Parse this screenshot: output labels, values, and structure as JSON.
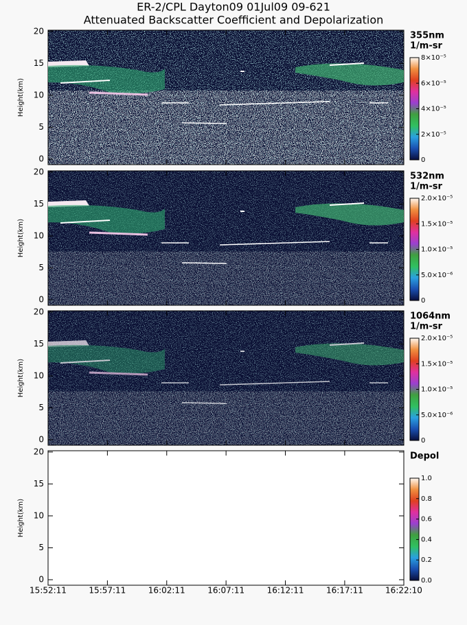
{
  "title": [
    "ER-2/CPL Dayton09 01Jul09 09-621",
    "Attenuated Backscatter Coefficient and Depolarization"
  ],
  "colormap": [
    "#0a0f3c",
    "#1a4fb0",
    "#2aa0e0",
    "#30c060",
    "#40a040",
    "#9a40d0",
    "#e030a0",
    "#e04020",
    "#f09040",
    "#fff8f0"
  ],
  "chart_data": [
    {
      "type": "heatmap",
      "ylabel": "Height(km)",
      "ylim": [
        -0.86,
        20.2
      ],
      "yticks": [
        0,
        5,
        10,
        15,
        20
      ],
      "background": "#0b1034",
      "colorbar_label": [
        "355nm",
        "1/m-sr"
      ],
      "clim": [
        0,
        8e-05
      ],
      "cticks": [
        {
          "value": 0,
          "label": "0"
        },
        {
          "value": 2e-05,
          "label": "2×10⁻⁵"
        },
        {
          "value": 4e-05,
          "label": "4×10⁻⁵"
        },
        {
          "value": 6e-05,
          "label": "6×10⁻⁵"
        },
        {
          "value": 8e-05,
          "label": "8×10⁻⁵"
        }
      ]
    },
    {
      "type": "heatmap",
      "ylabel": "Height(km)",
      "ylim": [
        -0.86,
        20.2
      ],
      "yticks": [
        0,
        5,
        10,
        15,
        20
      ],
      "background": "#0b1034",
      "colorbar_label": [
        "532nm",
        "1/m-sr"
      ],
      "clim": [
        0,
        2e-05
      ],
      "cticks": [
        {
          "value": 0,
          "label": "0"
        },
        {
          "value": 5e-06,
          "label": "5.0×10⁻⁶"
        },
        {
          "value": 1e-05,
          "label": "1.0×10⁻⁵"
        },
        {
          "value": 1.5e-05,
          "label": "1.5×10⁻⁵"
        },
        {
          "value": 2e-05,
          "label": "2.0×10⁻⁵"
        }
      ]
    },
    {
      "type": "heatmap",
      "ylabel": "Height(km)",
      "ylim": [
        -0.86,
        20.2
      ],
      "yticks": [
        0,
        5,
        10,
        15,
        20
      ],
      "background": "#0b1034",
      "colorbar_label": [
        "1064nm",
        "1/m-sr"
      ],
      "clim": [
        0,
        2e-05
      ],
      "cticks": [
        {
          "value": 0,
          "label": "0"
        },
        {
          "value": 5e-06,
          "label": "5.0×10⁻⁶"
        },
        {
          "value": 1e-05,
          "label": "1.0×10⁻⁵"
        },
        {
          "value": 1.5e-05,
          "label": "1.5×10⁻⁵"
        },
        {
          "value": 2e-05,
          "label": "2.0×10⁻⁵"
        }
      ]
    },
    {
      "type": "heatmap",
      "ylabel": "Height(km)",
      "ylim": [
        -0.86,
        20.2
      ],
      "yticks": [
        0,
        5,
        10,
        15,
        20
      ],
      "background": "#ffffff",
      "colorbar_label": [
        "Depol"
      ],
      "clim": [
        0,
        1
      ],
      "cticks": [
        {
          "value": 0,
          "label": "0.0"
        },
        0.2,
        0.4,
        0.6,
        0.8,
        {
          "value": 1,
          "label": "1.0"
        }
      ],
      "xlim": [
        "15:52:11",
        "16:22:10"
      ],
      "xticks": [
        "15:52:11",
        "15:57:11",
        "16:02:11",
        "16:07:11",
        "16:12:11",
        "16:17:11",
        "16:22:10"
      ]
    }
  ]
}
